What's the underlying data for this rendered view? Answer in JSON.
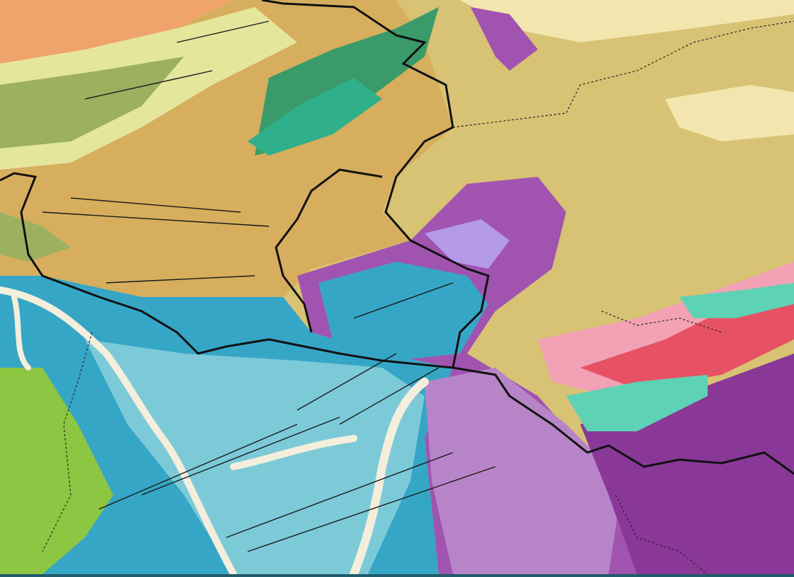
{
  "map": {
    "type": "geological-map",
    "colors": {
      "ochre": "#d6ae5e",
      "khaki": "#d8c274",
      "cream": "#f2e6ae",
      "orange": "#f0a46c",
      "pale_green": "#e4e69c",
      "olive": "#9cb060",
      "green": "#3a9a6a",
      "teal_green": "#2fb08a",
      "purple_dark": "#8a3898",
      "purple": "#a054b0",
      "purple_light": "#b884c8",
      "lavender": "#b49ae8",
      "blue": "#36a6c6",
      "blue_light": "#7ccad8",
      "river": "#f4eedc",
      "lime": "#8cc642",
      "pink": "#f2a2b4",
      "red": "#e65264",
      "aqua": "#5ed2b4",
      "border": "#111111",
      "fault": "#1a1a1a",
      "bottom_bar": "#1f5b6b"
    }
  }
}
